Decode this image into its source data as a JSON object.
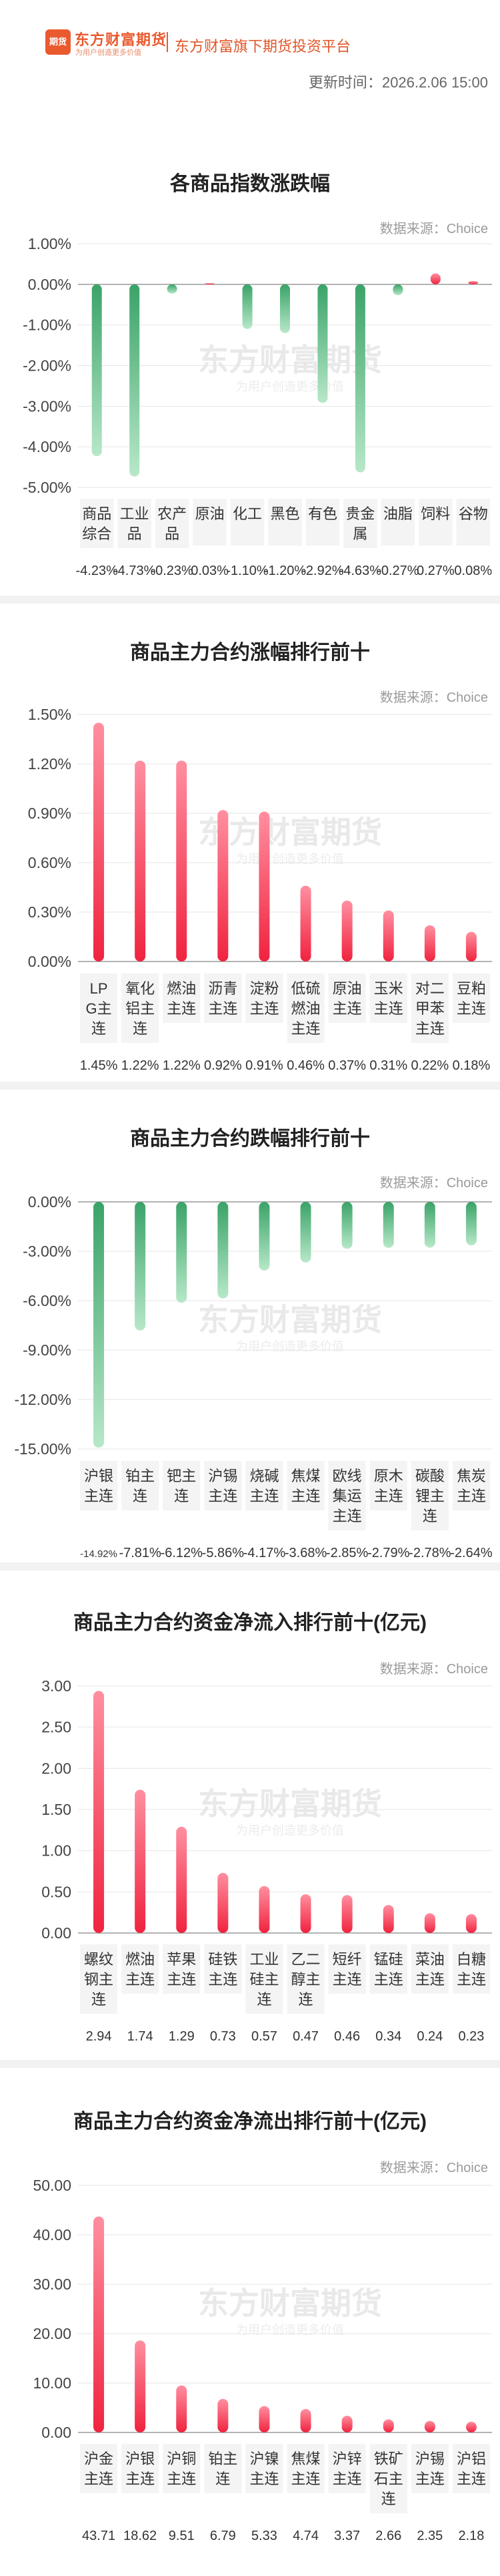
{
  "header": {
    "logo_badge": "期货",
    "logo_name": "东方财富期货",
    "logo_slogan": "为用户创造更多价值",
    "platform": "东方财富旗下期货投资平台",
    "update_label": "更新时间",
    "update_time": "2026.2.06 15:00",
    "watermark_main": "东方财富期货",
    "watermark_sub": "为用户创造更多价值"
  },
  "source_label": "数据来源：Choice",
  "charts": [
    {
      "title": "各商品指数涨跌幅",
      "chart_data": {
        "type": "bar",
        "categories": [
          "商品综合",
          "工业品",
          "农产品",
          "原油",
          "化工",
          "黑色",
          "有色",
          "贵金属",
          "油脂",
          "饲料",
          "谷物"
        ],
        "values": [
          -4.23,
          -4.73,
          -0.23,
          0.03,
          -1.1,
          -1.2,
          -2.92,
          -4.63,
          -0.27,
          0.27,
          0.08
        ],
        "value_labels": [
          "-4.23%",
          "-4.73%",
          "-0.23%",
          "0.03%",
          "-1.10%",
          "-1.20%",
          "-2.92%",
          "-4.63%",
          "-0.27%",
          "0.27%",
          "0.08%"
        ],
        "yticks": [
          "1.00%",
          "0.00%",
          "-1.00%",
          "-2.00%",
          "-3.00%",
          "-4.00%",
          "-5.00%"
        ],
        "ylim": [
          -5,
          1
        ]
      }
    },
    {
      "title": "商品主力合约涨幅排行前十",
      "chart_data": {
        "type": "bar",
        "categories": [
          "LPG主连",
          "氧化铝主连",
          "燃油主连",
          "沥青主连",
          "淀粉主连",
          "低硫燃油主连",
          "原油主连",
          "玉米主连",
          "对二甲苯主连",
          "豆粕主连"
        ],
        "values": [
          1.45,
          1.22,
          1.22,
          0.92,
          0.91,
          0.46,
          0.37,
          0.31,
          0.22,
          0.18
        ],
        "value_labels": [
          "1.45%",
          "1.22%",
          "1.22%",
          "0.92%",
          "0.91%",
          "0.46%",
          "0.37%",
          "0.31%",
          "0.22%",
          "0.18%"
        ],
        "yticks": [
          "1.50%",
          "1.20%",
          "0.90%",
          "0.60%",
          "0.30%",
          "0.00%"
        ],
        "ylim": [
          0,
          1.5
        ]
      }
    },
    {
      "title": "商品主力合约跌幅排行前十",
      "chart_data": {
        "type": "bar",
        "categories": [
          "沪银主连",
          "铂主连",
          "钯主连",
          "沪锡主连",
          "烧碱主连",
          "焦煤主连",
          "欧线集运主连",
          "原木主连",
          "碳酸锂主连",
          "焦炭主连"
        ],
        "values": [
          -14.92,
          -7.81,
          -6.12,
          -5.86,
          -4.17,
          -3.68,
          -2.85,
          -2.79,
          -2.78,
          -2.64
        ],
        "value_labels": [
          "-14.92%",
          "-7.81%",
          "-6.12%",
          "-5.86%",
          "-4.17%",
          "-3.68%",
          "-2.85%",
          "-2.79%",
          "-2.78%",
          "-2.64%"
        ],
        "yticks": [
          "0.00%",
          "-3.00%",
          "-6.00%",
          "-9.00%",
          "-12.00%",
          "-15.00%"
        ],
        "ylim": [
          -15,
          0
        ]
      }
    },
    {
      "title": "商品主力合约资金净流入排行前十(亿元)",
      "chart_data": {
        "type": "bar",
        "categories": [
          "螺纹钢主连",
          "燃油主连",
          "苹果主连",
          "硅铁主连",
          "工业硅主连",
          "乙二醇主连",
          "短纤主连",
          "锰硅主连",
          "菜油主连",
          "白糖主连"
        ],
        "values": [
          2.94,
          1.74,
          1.29,
          0.73,
          0.57,
          0.47,
          0.46,
          0.34,
          0.24,
          0.23
        ],
        "value_labels": [
          "2.94",
          "1.74",
          "1.29",
          "0.73",
          "0.57",
          "0.47",
          "0.46",
          "0.34",
          "0.24",
          "0.23"
        ],
        "yticks": [
          "3.00",
          "2.50",
          "2.00",
          "1.50",
          "1.00",
          "0.50",
          "0.00"
        ],
        "ylim": [
          0,
          3
        ]
      }
    },
    {
      "title": "商品主力合约资金净流出排行前十(亿元)",
      "chart_data": {
        "type": "bar",
        "categories": [
          "沪金主连",
          "沪银主连",
          "沪铜主连",
          "铂主连",
          "沪镍主连",
          "焦煤主连",
          "沪锌主连",
          "铁矿石主连",
          "沪锡主连",
          "沪铝主连"
        ],
        "values": [
          43.71,
          18.62,
          9.51,
          6.79,
          5.33,
          4.74,
          3.37,
          2.66,
          2.35,
          2.18
        ],
        "value_labels": [
          "43.71",
          "18.62",
          "9.51",
          "6.79",
          "5.33",
          "4.74",
          "3.37",
          "2.66",
          "2.35",
          "2.18"
        ],
        "yticks": [
          "50.00",
          "40.00",
          "30.00",
          "20.00",
          "10.00",
          "0.00"
        ],
        "ylim": [
          0,
          50
        ]
      }
    }
  ]
}
